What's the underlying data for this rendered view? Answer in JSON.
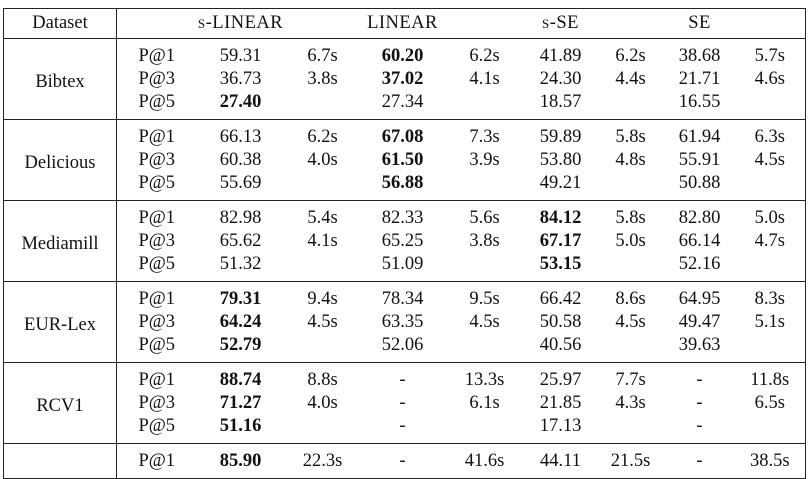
{
  "table": {
    "header": {
      "dataset": "Dataset",
      "methods": [
        "s-LINEAR",
        "LINEAR",
        "s-SE",
        "SE"
      ]
    },
    "groups": [
      {
        "name": "Bibtex",
        "rows": [
          {
            "metric": "P@1",
            "cells": [
              [
                "59.31",
                "6.7s"
              ],
              [
                "60.20",
                "6.2s"
              ],
              [
                "41.89",
                "6.2s"
              ],
              [
                "38.68",
                "5.7s"
              ]
            ],
            "bold": [
              1
            ]
          },
          {
            "metric": "P@3",
            "cells": [
              [
                "36.73",
                "3.8s"
              ],
              [
                "37.02",
                "4.1s"
              ],
              [
                "24.30",
                "4.4s"
              ],
              [
                "21.71",
                "4.6s"
              ]
            ],
            "bold": [
              1
            ]
          },
          {
            "metric": "P@5",
            "cells": [
              [
                "27.40",
                null
              ],
              [
                "27.34",
                null
              ],
              [
                "18.57",
                null
              ],
              [
                "16.55",
                null
              ]
            ],
            "bold": [
              0
            ]
          }
        ]
      },
      {
        "name": "Delicious",
        "rows": [
          {
            "metric": "P@1",
            "cells": [
              [
                "66.13",
                "6.2s"
              ],
              [
                "67.08",
                "7.3s"
              ],
              [
                "59.89",
                "5.8s"
              ],
              [
                "61.94",
                "6.3s"
              ]
            ],
            "bold": [
              1
            ]
          },
          {
            "metric": "P@3",
            "cells": [
              [
                "60.38",
                "4.0s"
              ],
              [
                "61.50",
                "3.9s"
              ],
              [
                "53.80",
                "4.8s"
              ],
              [
                "55.91",
                "4.5s"
              ]
            ],
            "bold": [
              1
            ]
          },
          {
            "metric": "P@5",
            "cells": [
              [
                "55.69",
                null
              ],
              [
                "56.88",
                null
              ],
              [
                "49.21",
                null
              ],
              [
                "50.88",
                null
              ]
            ],
            "bold": [
              1
            ]
          }
        ]
      },
      {
        "name": "Mediamill",
        "rows": [
          {
            "metric": "P@1",
            "cells": [
              [
                "82.98",
                "5.4s"
              ],
              [
                "82.33",
                "5.6s"
              ],
              [
                "84.12",
                "5.8s"
              ],
              [
                "82.80",
                "5.0s"
              ]
            ],
            "bold": [
              2
            ]
          },
          {
            "metric": "P@3",
            "cells": [
              [
                "65.62",
                "4.1s"
              ],
              [
                "65.25",
                "3.8s"
              ],
              [
                "67.17",
                "5.0s"
              ],
              [
                "66.14",
                "4.7s"
              ]
            ],
            "bold": [
              2
            ]
          },
          {
            "metric": "P@5",
            "cells": [
              [
                "51.32",
                null
              ],
              [
                "51.09",
                null
              ],
              [
                "53.15",
                null
              ],
              [
                "52.16",
                null
              ]
            ],
            "bold": [
              2
            ]
          }
        ]
      },
      {
        "name": "EUR-Lex",
        "rows": [
          {
            "metric": "P@1",
            "cells": [
              [
                "79.31",
                "9.4s"
              ],
              [
                "78.34",
                "9.5s"
              ],
              [
                "66.42",
                "8.6s"
              ],
              [
                "64.95",
                "8.3s"
              ]
            ],
            "bold": [
              0
            ]
          },
          {
            "metric": "P@3",
            "cells": [
              [
                "64.24",
                "4.5s"
              ],
              [
                "63.35",
                "4.5s"
              ],
              [
                "50.58",
                "4.5s"
              ],
              [
                "49.47",
                "5.1s"
              ]
            ],
            "bold": [
              0
            ]
          },
          {
            "metric": "P@5",
            "cells": [
              [
                "52.79",
                null
              ],
              [
                "52.06",
                null
              ],
              [
                "40.56",
                null
              ],
              [
                "39.63",
                null
              ]
            ],
            "bold": [
              0
            ]
          }
        ]
      },
      {
        "name": "RCV1",
        "rows": [
          {
            "metric": "P@1",
            "cells": [
              [
                "88.74",
                "8.8s"
              ],
              [
                "-",
                "13.3s"
              ],
              [
                "25.97",
                "7.7s"
              ],
              [
                "-",
                "11.8s"
              ]
            ],
            "bold": [
              0
            ]
          },
          {
            "metric": "P@3",
            "cells": [
              [
                "71.27",
                "4.0s"
              ],
              [
                "-",
                "6.1s"
              ],
              [
                "21.85",
                "4.3s"
              ],
              [
                "-",
                "6.5s"
              ]
            ],
            "bold": [
              0
            ]
          },
          {
            "metric": "P@5",
            "cells": [
              [
                "51.16",
                null
              ],
              [
                "-",
                null
              ],
              [
                "17.13",
                null
              ],
              [
                "-",
                null
              ]
            ],
            "bold": [
              0
            ]
          }
        ]
      },
      {
        "name": null,
        "rows": [
          {
            "metric": "P@1",
            "cells": [
              [
                "85.90",
                "22.3s"
              ],
              [
                "-",
                "41.6s"
              ],
              [
                "44.11",
                "21.5s"
              ],
              [
                "-",
                "38.5s"
              ]
            ],
            "bold": [
              0
            ]
          }
        ]
      }
    ]
  }
}
